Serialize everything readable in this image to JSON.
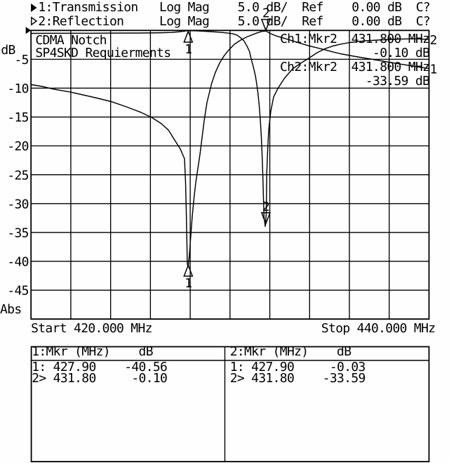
{
  "header": {
    "lines": [
      {
        "indicator": "filled-right-triangle",
        "text": "1:Transmission   Log Mag    5.0 dB/  Ref    0.00 dB  C?"
      },
      {
        "indicator": "open-right-triangle",
        "text": "2:Reflection     Log Mag    5.0 dB/  Ref    0.00 dB  C?"
      }
    ]
  },
  "plot": {
    "title_line1": "CDMA Notch",
    "title_line2": "SP4SKD Requierments",
    "readout_lines": [
      "Ch1:Mkr2  431.800 MHz",
      "             -0.10 dB",
      "Ch2:Mkr2  431.800 MHz",
      "            -33.59 dB"
    ],
    "y_axis_unit": "dB",
    "y_axis_bottom_label": "Abs",
    "x_start_label": "Start 420.000 MHz",
    "x_stop_label": "Stop 440.000 MHz"
  },
  "marker_table": {
    "left": {
      "header": "1:Mkr (MHz)    dB",
      "rows": [
        "1: 427.90    -40.56",
        "2> 431.80     -0.10"
      ]
    },
    "right": {
      "header": "2:Mkr (MHz)    dB",
      "rows": [
        "1: 427.90     -0.03",
        "2> 431.80    -33.59"
      ]
    }
  },
  "chart_data": {
    "type": "line",
    "title": "CDMA Notch SP4SKD Requierments",
    "x_axis": {
      "min": 420,
      "max": 440,
      "unit": "MHz",
      "divisions": 10,
      "start_label": "Start 420.000 MHz",
      "stop_label": "Stop 440.000 MHz"
    },
    "y_axis": {
      "min": -50,
      "max": 0,
      "unit": "dB",
      "divisions": 10,
      "ref_db": 0,
      "scale_db_per_div": 5,
      "tick_labels": [
        "-5",
        "-10",
        "-15",
        "-20",
        "-25",
        "-30",
        "-35",
        "-40",
        "-45"
      ]
    },
    "grid": true,
    "series": [
      {
        "name": "1:Transmission",
        "format": "Log Mag",
        "scale": "5.0 dB/",
        "ref": "0.00 dB",
        "edge_label": "1",
        "points": [
          [
            420.0,
            -9.38
          ],
          [
            420.557,
            -9.7
          ],
          [
            421.156,
            -10.19
          ],
          [
            421.967,
            -10.67
          ],
          [
            422.602,
            -11.16
          ],
          [
            423.377,
            -11.77
          ],
          [
            424.082,
            -12.38
          ],
          [
            424.788,
            -13.23
          ],
          [
            425.528,
            -14.2
          ],
          [
            426.057,
            -15.06
          ],
          [
            426.55,
            -16.15
          ],
          [
            426.903,
            -17.25
          ],
          [
            427.255,
            -19.19
          ],
          [
            427.502,
            -20.53
          ],
          [
            427.714,
            -22.24
          ],
          [
            427.767,
            -26.38
          ],
          [
            427.802,
            -31.24
          ],
          [
            427.83,
            -36.11
          ],
          [
            427.855,
            -40.49
          ],
          [
            427.901,
            -40.92
          ],
          [
            427.961,
            -38.79
          ],
          [
            428.031,
            -35.5
          ],
          [
            428.102,
            -32.22
          ],
          [
            428.19,
            -29.05
          ],
          [
            428.278,
            -26.38
          ],
          [
            428.384,
            -23.94
          ],
          [
            428.489,
            -21.51
          ],
          [
            428.595,
            -18.59
          ],
          [
            428.701,
            -15.66
          ],
          [
            428.842,
            -12.5
          ],
          [
            429.075,
            -9.21
          ],
          [
            429.265,
            -7.27
          ],
          [
            429.491,
            -5.56
          ],
          [
            429.688,
            -4.47
          ],
          [
            429.91,
            -3.49
          ],
          [
            430.217,
            -2.4
          ],
          [
            430.538,
            -1.67
          ],
          [
            430.851,
            -1.12
          ],
          [
            431.165,
            -0.69
          ],
          [
            431.415,
            -0.37
          ],
          [
            431.592,
            -0.18
          ],
          [
            431.8,
            -0.1
          ],
          [
            432.015,
            -0.51
          ],
          [
            432.311,
            -0.95
          ],
          [
            432.72,
            -1.36
          ],
          [
            433.139,
            -1.8
          ],
          [
            433.531,
            -2.22
          ],
          [
            433.964,
            -2.67
          ],
          [
            434.377,
            -3.01
          ],
          [
            434.789,
            -3.37
          ],
          [
            435.188,
            -3.74
          ],
          [
            435.618,
            -4.09
          ],
          [
            436.422,
            -4.59
          ],
          [
            437.479,
            -5.2
          ],
          [
            438.537,
            -5.81
          ],
          [
            439.172,
            -6.17
          ],
          [
            440.0,
            -6.6
          ]
        ]
      },
      {
        "name": "2:Reflection",
        "format": "Log Mag",
        "scale": "5.0 dB/",
        "ref": "0.00 dB",
        "edge_label": "2",
        "points": [
          [
            420.0,
            -0.51
          ],
          [
            421.262,
            -0.5
          ],
          [
            422.672,
            -0.49
          ],
          [
            424.082,
            -0.47
          ],
          [
            425.493,
            -0.45
          ],
          [
            426.55,
            -0.4
          ],
          [
            427.079,
            -0.35
          ],
          [
            427.432,
            -0.24
          ],
          [
            427.678,
            -0.13
          ],
          [
            427.9,
            -0.03
          ],
          [
            428.031,
            -0.05
          ],
          [
            428.313,
            -0.07
          ],
          [
            428.666,
            -0.13
          ],
          [
            429.018,
            -0.21
          ],
          [
            429.371,
            -0.29
          ],
          [
            429.723,
            -0.4
          ],
          [
            430.111,
            -0.55
          ],
          [
            430.358,
            -0.82
          ],
          [
            430.534,
            -1.28
          ],
          [
            430.71,
            -1.85
          ],
          [
            430.851,
            -2.71
          ],
          [
            430.975,
            -3.61
          ],
          [
            431.063,
            -4.88
          ],
          [
            431.169,
            -6.29
          ],
          [
            431.274,
            -7.81
          ],
          [
            431.345,
            -9.34
          ],
          [
            431.398,
            -10.67
          ],
          [
            431.468,
            -12.99
          ],
          [
            431.521,
            -15.42
          ],
          [
            431.574,
            -18.46
          ],
          [
            431.62,
            -22.12
          ],
          [
            431.655,
            -25.77
          ],
          [
            431.683,
            -29.42
          ],
          [
            431.708,
            -32.22
          ],
          [
            431.77,
            -33.95
          ],
          [
            431.82,
            -31.85
          ],
          [
            431.849,
            -24.55
          ],
          [
            431.891,
            -20.9
          ],
          [
            431.944,
            -17.25
          ],
          [
            432.05,
            -13.96
          ],
          [
            432.191,
            -11.53
          ],
          [
            432.403,
            -10.07
          ],
          [
            432.72,
            -8.36
          ],
          [
            433.143,
            -6.66
          ],
          [
            433.552,
            -5.68
          ],
          [
            433.954,
            -4.83
          ],
          [
            434.377,
            -3.86
          ],
          [
            434.8,
            -3.13
          ],
          [
            435.205,
            -2.67
          ],
          [
            435.611,
            -2.34
          ],
          [
            436.034,
            -2.09
          ],
          [
            436.774,
            -1.8
          ],
          [
            437.656,
            -1.62
          ],
          [
            438.537,
            -1.5
          ],
          [
            439.242,
            -1.45
          ],
          [
            440.0,
            -1.55
          ]
        ]
      }
    ],
    "markers": [
      {
        "channel": 1,
        "number": "1",
        "freq_mhz": 427.9,
        "value_db": -40.56,
        "active": false
      },
      {
        "channel": 1,
        "number": "2",
        "freq_mhz": 431.8,
        "value_db": -0.1,
        "active": true
      },
      {
        "channel": 2,
        "number": "1",
        "freq_mhz": 427.9,
        "value_db": -0.03,
        "active": false
      },
      {
        "channel": 2,
        "number": "2",
        "freq_mhz": 431.8,
        "value_db": -33.59,
        "active": true
      }
    ]
  }
}
